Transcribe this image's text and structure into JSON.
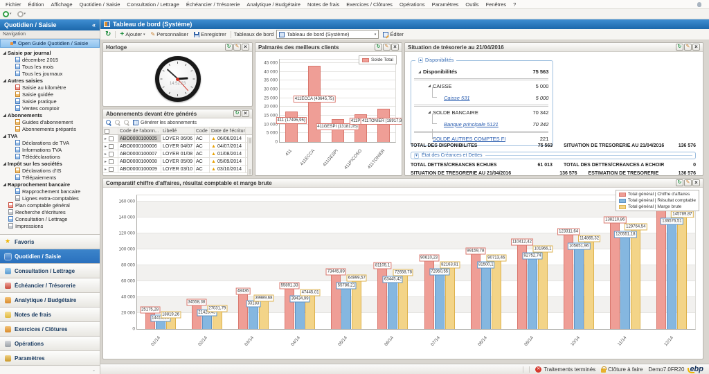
{
  "menu_bar": {
    "items": [
      "Fichier",
      "Édition",
      "Affichage",
      "Quotidien / Saisie",
      "Consultation / Lettrage",
      "Échéancier / Trésorerie",
      "Analytique / Budgétaire",
      "Notes de frais",
      "Exercices / Clôtures",
      "Opérations",
      "Paramètres",
      "Outils",
      "Fenêtres",
      "?"
    ]
  },
  "sidebar": {
    "title": "Quotidien / Saisie",
    "collapse_glyph": "«",
    "navigation_label": "Navigation",
    "selected_item": "Open Guide Quotidien / Saisie",
    "tree": [
      {
        "label": "Saisie par journal",
        "g": true
      },
      {
        "label": "décembre 2015",
        "c": true,
        "icon": "blue"
      },
      {
        "label": "Tous les mois",
        "c": true,
        "icon": "blue"
      },
      {
        "label": "Tous les journaux",
        "c": true,
        "icon": "blue"
      },
      {
        "label": "Autres saisies",
        "g": true
      },
      {
        "label": "Saisie au kilomètre",
        "c": true,
        "icon": "red"
      },
      {
        "label": "Saisie guidée",
        "c": true,
        "icon": "orange"
      },
      {
        "label": "Saisie pratique",
        "c": true,
        "icon": "blue"
      },
      {
        "label": "Ventes comptoir",
        "c": true,
        "icon": "blue"
      },
      {
        "label": "Abonnements",
        "g": true
      },
      {
        "label": "Guides d'abonnement",
        "c": true,
        "icon": "orange"
      },
      {
        "label": "Abonnements préparés",
        "c": true,
        "icon": "orange"
      },
      {
        "label": "TVA",
        "g": true
      },
      {
        "label": "Déclarations de TVA",
        "c": true,
        "icon": "blue"
      },
      {
        "label": "Informations TVA",
        "c": true,
        "icon": "blue"
      },
      {
        "label": "Télédéclarations",
        "c": true,
        "icon": "blue"
      },
      {
        "label": "Impôt sur les sociétés",
        "g": true
      },
      {
        "label": "Déclarations d'IS",
        "c": true,
        "icon": "orange"
      },
      {
        "label": "Télépaiements",
        "c": true,
        "icon": "blue"
      },
      {
        "label": "Rapprochement bancaire",
        "g": true
      },
      {
        "label": "Rapprochement bancaire",
        "c": true,
        "icon": "blue"
      },
      {
        "label": "Lignes extra-comptables",
        "c": true,
        "icon": "gray"
      },
      {
        "label": "Plan comptable général",
        "s": true,
        "icon": "red"
      },
      {
        "label": "Recherche d'écritures",
        "s": true,
        "icon": "gray"
      },
      {
        "label": "Consultation / Lettrage",
        "s": true,
        "icon": "blue"
      },
      {
        "label": "Impressions",
        "s": true,
        "icon": "gray"
      }
    ],
    "modules": [
      {
        "label": "Favoris",
        "icon": "star"
      },
      {
        "label": "Quotidien / Saisie",
        "icon": "blue",
        "selected": true
      },
      {
        "label": "Consultation / Lettrage",
        "icon": "teal"
      },
      {
        "label": "Échéancier / Trésorerie",
        "icon": "red"
      },
      {
        "label": "Analytique / Budgétaire",
        "icon": "orange"
      },
      {
        "label": "Notes de frais",
        "icon": "yellow"
      },
      {
        "label": "Exercices / Clôtures",
        "icon": "orange"
      },
      {
        "label": "Opérations",
        "icon": "gray"
      },
      {
        "label": "Paramètres",
        "icon": "gold"
      }
    ]
  },
  "tab": {
    "title": "Tableau de bord (Système)"
  },
  "toolbar": {
    "add_label": "Ajouter",
    "personalize_label": "Personnaliser",
    "save_label": "Enregistrer",
    "dashboards_label": "Tableaux de bord",
    "dashboard_select_value": "Tableau de bord (Système)",
    "edit_label": "Éditer"
  },
  "clock_panel": {
    "title": "Horloge",
    "time": "14:52:23"
  },
  "subscriptions_panel": {
    "title": "Abonnements devant être générés",
    "generate_button": "Générer les abonnements",
    "columns": [
      "Code de l'abonn...",
      "Libellé",
      "Code ...",
      "Date de l'écriture"
    ],
    "rows": [
      {
        "code": "ABO0000100005",
        "libelle": "LOYER 06/06",
        "code2": "AC",
        "date": "06/06/2014",
        "selected": true
      },
      {
        "code": "ABO0000100006",
        "libelle": "LOYER 04/07",
        "code2": "AC",
        "date": "04/07/2014"
      },
      {
        "code": "ABO0000100007",
        "libelle": "LOYER 01/08",
        "code2": "AC",
        "date": "01/08/2014"
      },
      {
        "code": "ABO0000100008",
        "libelle": "LOYER 05/09",
        "code2": "AC",
        "date": "05/09/2014"
      },
      {
        "code": "ABO0000100009",
        "libelle": "LOYER 03/10",
        "code2": "AC",
        "date": "03/10/2014"
      }
    ]
  },
  "treasury": {
    "title": "Situation de trésorerie au 21/04/2016",
    "group_label": "Disponibilités",
    "rows": [
      {
        "label": "Disponibilités",
        "value": "75 563",
        "lvl": "lvl0",
        "bold": true,
        "expander": true
      },
      {
        "label": "CAISSE",
        "value": "5 000",
        "lvl": "lvl1",
        "expander": true,
        "sep": true
      },
      {
        "label": "Caisse 531",
        "value": "5 000",
        "lvl": "lvl2",
        "link": true,
        "italic": true,
        "conn": true
      },
      {
        "label": "SOLDE BANCAIRE",
        "value": "70 342",
        "lvl": "lvl1",
        "expander": true,
        "sep": true
      },
      {
        "label": "Banque principale 5121",
        "value": "70 342",
        "lvl": "lvl2",
        "link": true,
        "italic": true,
        "conn": true
      },
      {
        "label": "SOLDE AUTRES COMPTES FINANCIERS",
        "value": "221",
        "lvl": "lvl1",
        "link": true,
        "sep": true,
        "conn": true
      }
    ],
    "debts_group_label": "État des Créances et Dettes",
    "totals": [
      {
        "l1": "TOTAL DES DISPONIBILITES",
        "v1": "75 563",
        "l2": "SITUATION DE TRESORERIE AU 21/04/2016",
        "v2": "136 576"
      },
      {
        "l1": "TOTAL DETTES/CREANCES ECHUES",
        "v1": "61 013",
        "l2": "TOTAL DES DETTES/CREANCES A ECHOIR",
        "v2": "0"
      },
      {
        "l1": "SITUATION DE TRESORERIE AU 21/04/2016",
        "v1": "136 576",
        "l2": "ESTIMATION DE TRESORERIE",
        "v2": "136 576"
      }
    ]
  },
  "chart_data": [
    {
      "name": "palmares",
      "type": "bar",
      "title": "Palmarès des meilleurs clients",
      "categories": [
        "411",
        "411ECCA",
        "411GESPI",
        "411PICOSO",
        "411TONIER"
      ],
      "ymax": 47000,
      "ylim": [
        0,
        45000
      ],
      "yticks": [
        "0",
        "5 000",
        "10 000",
        "15 000",
        "20 000",
        "25 000",
        "30 000",
        "35 000",
        "40 000",
        "45 000"
      ],
      "ytick_values": [
        0,
        5000,
        10000,
        15000,
        20000,
        25000,
        30000,
        35000,
        40000,
        45000
      ],
      "legend_position": "inside-top-right",
      "series": [
        {
          "name": "Solde Total",
          "fill": "#ef9e96",
          "stroke": "#d9776d",
          "values": [
            17495.95,
            43645.75,
            13181.05,
            15800,
            18917.95
          ],
          "labels": [
            "411 (17495,95)",
            "411ECCA (43645,75)",
            "411GESPI (13181,05)",
            "411PICOS",
            "411TONIER (18917,95)"
          ]
        }
      ]
    },
    {
      "name": "comparatif",
      "type": "bar",
      "title": "Comparatif chiffre d'affaires, résultat comptable et marge brute",
      "categories": [
        "01/14",
        "02/14",
        "03/14",
        "04/14",
        "05/14",
        "06/14",
        "07/14",
        "08/14",
        "09/14",
        "10/14",
        "11/14",
        "12/14"
      ],
      "ymax": 168000,
      "ylim": [
        0,
        160000
      ],
      "yticks": [
        "0",
        "20 000",
        "40 000",
        "60 000",
        "80 000",
        "100 000",
        "120 000",
        "140 000",
        "160 000"
      ],
      "ytick_values": [
        0,
        20000,
        40000,
        60000,
        80000,
        100000,
        120000,
        140000,
        160000
      ],
      "legend_position": "outside-top-right",
      "series": [
        {
          "name": "Total général | Chiffre d'affaires",
          "fill": "#ef9e96",
          "stroke": "#d9776d",
          "values": [
            25175.28,
            34558.38,
            48436,
            55891.33,
            73445.89,
            81105.1,
            90610.23,
            99159.78,
            110412.42,
            123311.64,
            138210.86,
            154236.19
          ],
          "labels": [
            "25175,28",
            "34558,38",
            "48436",
            "55891,33",
            "73445,89",
            "81105,1",
            "90610,23",
            "99159,78",
            "110412,42",
            "123311,64",
            "138210,86",
            "154236,19"
          ]
        },
        {
          "name": "Total général | Résultat comptable",
          "fill": "#85b7e0",
          "stroke": "#5f93c4",
          "values": [
            14419.26,
            21428.45,
            33183,
            39434.99,
            55786.21,
            63445.42,
            72950.55,
            81500.1,
            92752.74,
            105651.96,
            120551.18,
            136576.51
          ],
          "labels": [
            "14419,26",
            "21428,45",
            "33183",
            "39434,99",
            "55786,21",
            "63445,42",
            "72950,55",
            "81500,1",
            "92752,74",
            "105651,96",
            "120551,18",
            "136576,51"
          ]
        },
        {
          "name": "Total général | Marge brute",
          "fill": "#f3d488",
          "stroke": "#ddb24e",
          "values": [
            18819.26,
            27031.79,
            39989.68,
            47445.01,
            64999.57,
            72658.78,
            82163.91,
            90713.46,
            101966.1,
            114865.32,
            129764.54,
            145789.87
          ],
          "labels": [
            "18819,26",
            "27031,79",
            "39989,68",
            "47445,01",
            "64999,57",
            "72658,78",
            "82163,91",
            "90713,46",
            "101966,1",
            "114865,32",
            "129764,54",
            "145789,87"
          ]
        }
      ]
    }
  ],
  "status_bar": {
    "processing_label": "Traitements terminés",
    "processing_icon": "red-circle-x-icon",
    "closure_label": "Clôture à faire",
    "closure_icon": "lock-icon",
    "version": "Demo7.0FR20",
    "brand": "ebp"
  }
}
